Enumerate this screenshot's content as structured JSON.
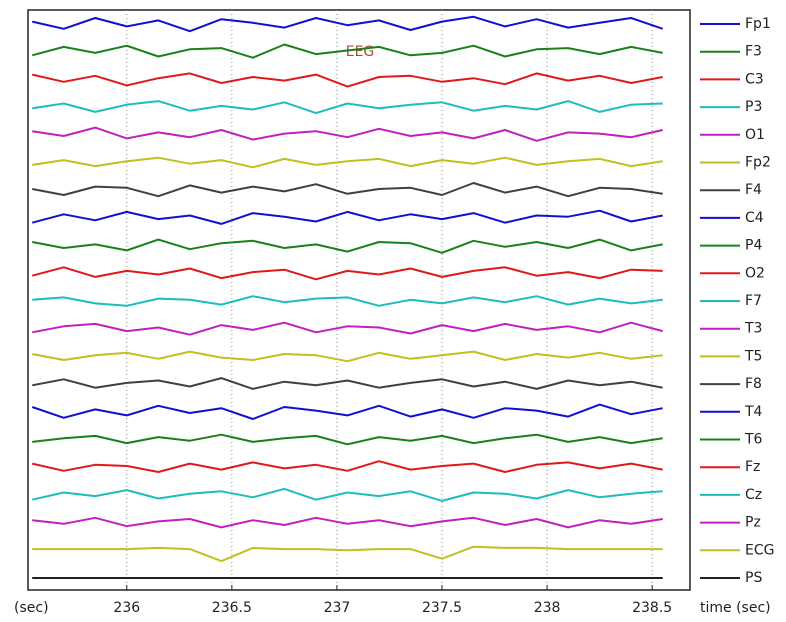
{
  "chart_data": {
    "type": "line",
    "title": "EEG",
    "x_unit_label": "(sec)",
    "x_label": "time (sec)",
    "xlim": [
      235.53,
      238.68
    ],
    "xticks": [
      236,
      236.5,
      237,
      237.5,
      238,
      238.5
    ],
    "grid": true,
    "x": [
      235.55,
      235.7,
      235.85,
      236.0,
      236.15,
      236.3,
      236.45,
      236.6,
      236.75,
      236.9,
      237.05,
      237.2,
      237.35,
      237.5,
      237.65,
      237.8,
      237.95,
      238.1,
      238.25,
      238.4,
      238.55
    ],
    "series": [
      {
        "name": "Fp1",
        "color": "#1010d0",
        "values": [
          0.2,
          -0.4,
          0.5,
          -0.2,
          0.3,
          -0.6,
          0.4,
          0.1,
          -0.3,
          0.5,
          -0.1,
          0.3,
          -0.5,
          0.2,
          0.6,
          -0.2,
          0.4,
          -0.3,
          0.1,
          0.5,
          -0.4
        ]
      },
      {
        "name": "F3",
        "color": "#1a801a",
        "values": [
          -0.3,
          0.4,
          -0.1,
          0.5,
          -0.4,
          0.2,
          0.3,
          -0.5,
          0.6,
          -0.2,
          0.1,
          0.4,
          -0.3,
          -0.1,
          0.5,
          -0.4,
          0.2,
          0.3,
          -0.2,
          0.4,
          -0.1
        ]
      },
      {
        "name": "C3",
        "color": "#e01818",
        "values": [
          0.4,
          -0.2,
          0.3,
          -0.5,
          0.1,
          0.5,
          -0.3,
          0.2,
          -0.1,
          0.4,
          -0.6,
          0.2,
          0.3,
          -0.2,
          0.1,
          -0.4,
          0.5,
          -0.1,
          0.3,
          -0.3,
          0.2
        ]
      },
      {
        "name": "P3",
        "color": "#1fbcbc",
        "values": [
          -0.1,
          0.3,
          -0.4,
          0.2,
          0.5,
          -0.3,
          0.1,
          -0.2,
          0.4,
          -0.5,
          0.3,
          -0.1,
          0.2,
          0.4,
          -0.3,
          0.1,
          -0.2,
          0.5,
          -0.4,
          0.2,
          0.3
        ]
      },
      {
        "name": "O1",
        "color": "#c020c0",
        "values": [
          0.3,
          -0.1,
          0.6,
          -0.3,
          0.2,
          -0.2,
          0.4,
          -0.4,
          0.1,
          0.3,
          -0.2,
          0.5,
          -0.1,
          0.2,
          -0.3,
          0.4,
          -0.5,
          0.2,
          0.1,
          -0.2,
          0.4
        ]
      },
      {
        "name": "Fp2",
        "color": "#c0c020",
        "values": [
          -0.2,
          0.2,
          -0.3,
          0.1,
          0.4,
          -0.1,
          0.2,
          -0.4,
          0.3,
          -0.2,
          0.1,
          0.3,
          -0.3,
          0.2,
          -0.1,
          0.4,
          -0.2,
          0.1,
          0.3,
          -0.3,
          0.1
        ]
      },
      {
        "name": "F4",
        "color": "#404040",
        "values": [
          0.1,
          -0.4,
          0.3,
          0.2,
          -0.5,
          0.4,
          -0.2,
          0.3,
          -0.1,
          0.5,
          -0.3,
          0.1,
          0.2,
          -0.4,
          0.6,
          -0.2,
          0.3,
          -0.5,
          0.2,
          0.1,
          -0.3
        ]
      },
      {
        "name": "C4",
        "color": "#1010d0",
        "values": [
          -0.4,
          0.3,
          -0.2,
          0.5,
          -0.1,
          0.2,
          -0.5,
          0.4,
          0.1,
          -0.3,
          0.5,
          -0.2,
          0.3,
          -0.1,
          0.4,
          -0.4,
          0.2,
          0.1,
          0.6,
          -0.3,
          0.2
        ]
      },
      {
        "name": "P4",
        "color": "#1a801a",
        "values": [
          0.3,
          -0.2,
          0.1,
          -0.4,
          0.5,
          -0.3,
          0.2,
          0.4,
          -0.2,
          0.1,
          -0.5,
          0.3,
          0.2,
          -0.6,
          0.4,
          -0.1,
          0.3,
          -0.2,
          0.5,
          -0.4,
          0.1
        ]
      },
      {
        "name": "O2",
        "color": "#e01818",
        "values": [
          -0.2,
          0.5,
          -0.3,
          0.2,
          -0.1,
          0.4,
          -0.4,
          0.1,
          0.3,
          -0.5,
          0.2,
          -0.1,
          0.4,
          -0.3,
          0.2,
          0.5,
          -0.2,
          0.1,
          -0.4,
          0.3,
          0.2
        ]
      },
      {
        "name": "F7",
        "color": "#1fbcbc",
        "values": [
          0.1,
          0.3,
          -0.2,
          -0.4,
          0.2,
          0.1,
          -0.3,
          0.4,
          -0.1,
          0.2,
          0.3,
          -0.4,
          0.1,
          -0.2,
          0.3,
          -0.1,
          0.4,
          -0.3,
          0.2,
          -0.2,
          0.1
        ]
      },
      {
        "name": "T3",
        "color": "#c020c0",
        "values": [
          -0.3,
          0.2,
          0.4,
          -0.2,
          0.1,
          -0.5,
          0.3,
          -0.1,
          0.5,
          -0.3,
          0.2,
          0.1,
          -0.4,
          0.3,
          -0.2,
          0.4,
          -0.1,
          0.2,
          -0.3,
          0.5,
          -0.2
        ]
      },
      {
        "name": "T5",
        "color": "#c0c020",
        "values": [
          0.2,
          -0.3,
          0.1,
          0.3,
          -0.2,
          0.4,
          -0.1,
          -0.3,
          0.2,
          0.1,
          -0.4,
          0.3,
          -0.2,
          0.1,
          0.4,
          -0.3,
          0.2,
          -0.1,
          0.3,
          -0.2,
          0.1
        ]
      },
      {
        "name": "F8",
        "color": "#404040",
        "values": [
          -0.1,
          0.4,
          -0.3,
          0.1,
          0.3,
          -0.2,
          0.5,
          -0.4,
          0.2,
          -0.1,
          0.3,
          -0.3,
          0.1,
          0.4,
          -0.2,
          0.2,
          -0.4,
          0.3,
          -0.1,
          0.2,
          -0.3
        ]
      },
      {
        "name": "T4",
        "color": "#1010d0",
        "values": [
          0.4,
          -0.5,
          0.2,
          -0.3,
          0.5,
          -0.1,
          0.3,
          -0.6,
          0.4,
          0.1,
          -0.3,
          0.5,
          -0.4,
          0.2,
          -0.5,
          0.3,
          0.1,
          -0.4,
          0.6,
          -0.2,
          0.3
        ]
      },
      {
        "name": "T6",
        "color": "#1a801a",
        "values": [
          -0.2,
          0.1,
          0.3,
          -0.3,
          0.2,
          -0.1,
          0.4,
          -0.2,
          0.1,
          0.3,
          -0.4,
          0.2,
          -0.1,
          0.3,
          -0.3,
          0.1,
          0.4,
          -0.2,
          0.2,
          -0.3,
          0.1
        ]
      },
      {
        "name": "Fz",
        "color": "#e01818",
        "values": [
          0.3,
          -0.3,
          0.2,
          0.1,
          -0.4,
          0.3,
          -0.2,
          0.4,
          -0.1,
          0.2,
          -0.3,
          0.5,
          -0.2,
          0.1,
          0.3,
          -0.4,
          0.2,
          0.4,
          -0.1,
          0.3,
          -0.2
        ]
      },
      {
        "name": "Cz",
        "color": "#1fbcbc",
        "values": [
          -0.4,
          0.2,
          -0.1,
          0.4,
          -0.3,
          0.1,
          0.3,
          -0.2,
          0.5,
          -0.4,
          0.2,
          -0.1,
          0.3,
          -0.5,
          0.2,
          0.1,
          -0.3,
          0.4,
          -0.2,
          0.1,
          0.3
        ]
      },
      {
        "name": "Pz",
        "color": "#c020c0",
        "values": [
          0.2,
          -0.1,
          0.4,
          -0.3,
          0.1,
          0.3,
          -0.4,
          0.2,
          -0.2,
          0.4,
          -0.1,
          0.2,
          -0.3,
          0.1,
          0.4,
          -0.2,
          0.3,
          -0.4,
          0.2,
          -0.1,
          0.3
        ]
      },
      {
        "name": "ECG",
        "color": "#c0c020",
        "values": [
          0.1,
          0.1,
          0.1,
          0.1,
          0.2,
          0.1,
          -0.9,
          0.2,
          0.1,
          0.1,
          0.0,
          0.1,
          0.1,
          -0.7,
          0.3,
          0.2,
          0.2,
          0.1,
          0.1,
          0.1,
          0.1
        ]
      },
      {
        "name": "PS",
        "color": "#202020",
        "values": [
          0,
          0,
          0,
          0,
          0,
          0,
          0,
          0,
          0,
          0,
          0,
          0,
          0,
          0,
          0,
          0,
          0,
          0,
          0,
          0,
          0
        ]
      }
    ]
  }
}
